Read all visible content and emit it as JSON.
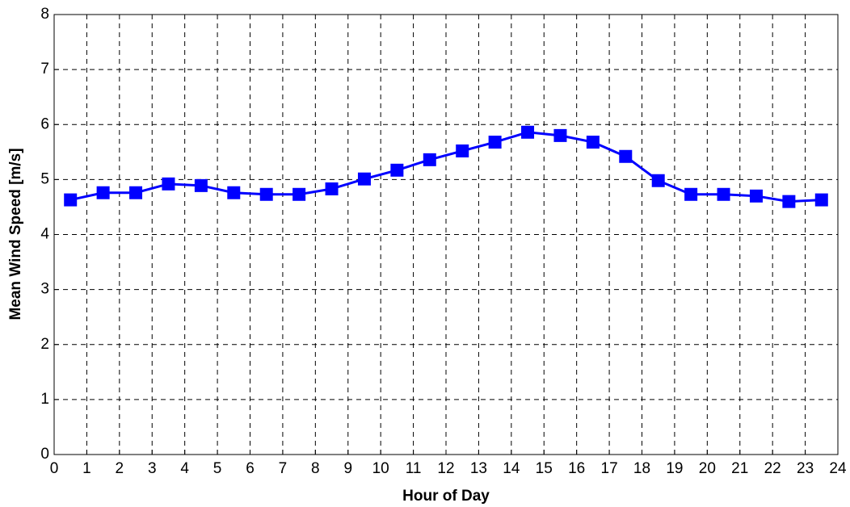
{
  "chart_data": {
    "type": "line",
    "xlabel": "Hour of Day",
    "ylabel": "Mean Wind Speed [m/s]",
    "x": [
      0.5,
      1.5,
      2.5,
      3.5,
      4.5,
      5.5,
      6.5,
      7.5,
      8.5,
      9.5,
      10.5,
      11.5,
      12.5,
      13.5,
      14.5,
      15.5,
      16.5,
      17.5,
      18.5,
      19.5,
      20.5,
      21.5,
      22.5,
      23.5
    ],
    "series": [
      {
        "color": "#0000ff",
        "values": [
          4.63,
          4.76,
          4.76,
          4.92,
          4.89,
          4.76,
          4.73,
          4.73,
          4.83,
          5.01,
          5.17,
          5.36,
          5.52,
          5.68,
          5.86,
          5.8,
          5.68,
          5.42,
          4.98,
          4.73,
          4.73,
          4.7,
          4.6,
          4.63
        ]
      }
    ],
    "xlim": [
      0,
      24
    ],
    "xticks": [
      0,
      1,
      2,
      3,
      4,
      5,
      6,
      7,
      8,
      9,
      10,
      11,
      12,
      13,
      14,
      15,
      16,
      17,
      18,
      19,
      20,
      21,
      22,
      23,
      24
    ],
    "ylim": [
      0,
      8
    ],
    "yticks": [
      0,
      1,
      2,
      3,
      4,
      5,
      6,
      7,
      8
    ],
    "grid": true
  }
}
